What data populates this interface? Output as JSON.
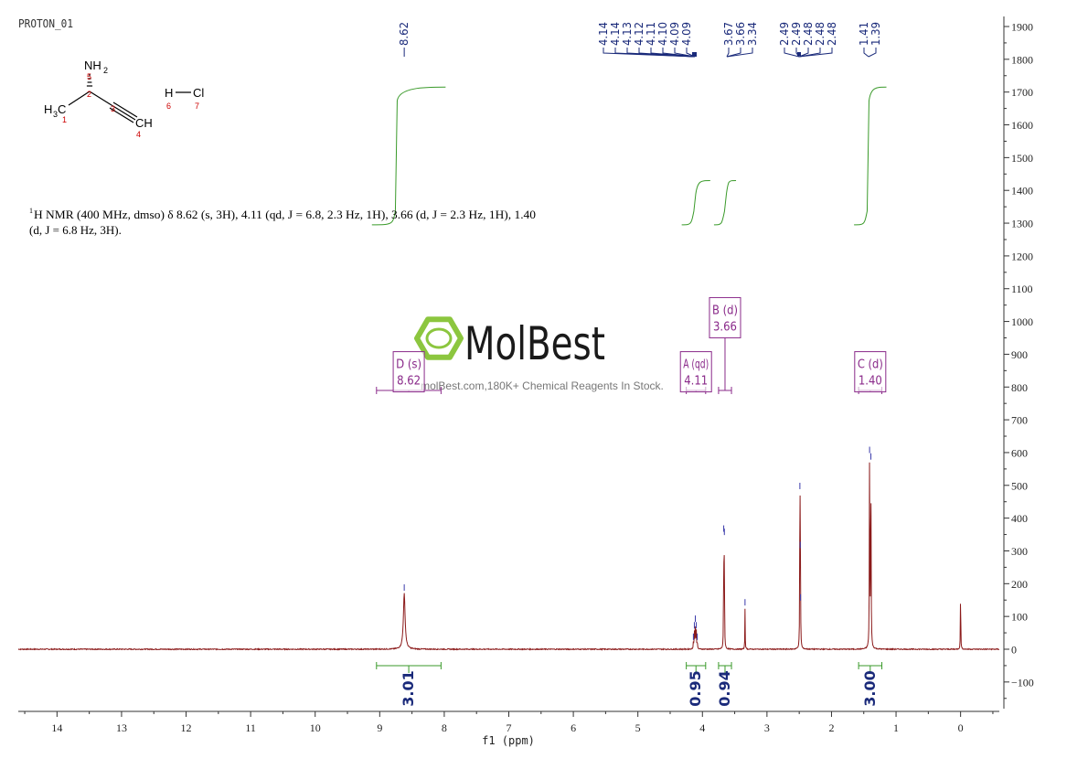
{
  "chart_data": {
    "type": "line",
    "title": "PROTON_01",
    "xlabel": "f1 (ppm)",
    "ylabel": "",
    "xlim": [
      14.6,
      -0.6
    ],
    "ylim": [
      -190,
      1925
    ],
    "x_ticks": [
      14,
      13,
      12,
      11,
      10,
      9,
      8,
      7,
      6,
      5,
      4,
      3,
      2,
      1,
      0
    ],
    "y_ticks": [
      1900,
      1800,
      1700,
      1600,
      1500,
      1400,
      1300,
      1200,
      1100,
      1000,
      900,
      800,
      700,
      600,
      500,
      400,
      300,
      200,
      100,
      0,
      -100
    ],
    "peaks": [
      {
        "ppm": 8.62,
        "height": 170,
        "width": 0.016
      },
      {
        "ppm": 4.14,
        "height": 20,
        "width": 0.004
      },
      {
        "ppm": 4.125,
        "height": 55,
        "width": 0.004
      },
      {
        "ppm": 4.11,
        "height": 75,
        "width": 0.004
      },
      {
        "ppm": 4.095,
        "height": 55,
        "width": 0.004
      },
      {
        "ppm": 4.08,
        "height": 20,
        "width": 0.004
      },
      {
        "ppm": 3.67,
        "height": 350,
        "width": 0.003
      },
      {
        "ppm": 3.66,
        "height": 340,
        "width": 0.003
      },
      {
        "ppm": 3.34,
        "height": 125,
        "width": 0.003
      },
      {
        "ppm": 2.49,
        "height": 480,
        "width": 0.003
      },
      {
        "ppm": 2.485,
        "height": 300,
        "width": 0.003
      },
      {
        "ppm": 2.48,
        "height": 140,
        "width": 0.003
      },
      {
        "ppm": 1.41,
        "height": 590,
        "width": 0.004
      },
      {
        "ppm": 1.39,
        "height": 570,
        "width": 0.004
      },
      {
        "ppm": 0.0,
        "height": 210,
        "width": 0.003
      }
    ],
    "peak_labels": [
      {
        "text": "8.62",
        "ppm": 8.62
      },
      {
        "text": "4.14",
        "ppm": 4.14
      },
      {
        "text": "4.14",
        "ppm": 4.14
      },
      {
        "text": "4.13",
        "ppm": 4.13
      },
      {
        "text": "4.12",
        "ppm": 4.12
      },
      {
        "text": "4.11",
        "ppm": 4.11
      },
      {
        "text": "4.10",
        "ppm": 4.1
      },
      {
        "text": "4.09",
        "ppm": 4.09
      },
      {
        "text": "4.09",
        "ppm": 4.09
      },
      {
        "text": "3.67",
        "ppm": 3.67
      },
      {
        "text": "3.66",
        "ppm": 3.66
      },
      {
        "text": "3.34",
        "ppm": 3.34
      },
      {
        "text": "2.49",
        "ppm": 2.49
      },
      {
        "text": "2.49",
        "ppm": 2.49
      },
      {
        "text": "2.48",
        "ppm": 2.48
      },
      {
        "text": "2.48",
        "ppm": 2.48
      },
      {
        "text": "2.48",
        "ppm": 2.48
      },
      {
        "text": "1.41",
        "ppm": 1.41
      },
      {
        "text": "1.39",
        "ppm": 1.39
      }
    ],
    "integrals": [
      {
        "from": 9.05,
        "to": 8.05,
        "value": "3.01",
        "rise": [
          1295,
          1715
        ]
      },
      {
        "from": 4.25,
        "to": 3.95,
        "value": "0.95",
        "rise": [
          1295,
          1430
        ]
      },
      {
        "from": 3.75,
        "to": 3.55,
        "value": "0.94",
        "rise": [
          1295,
          1430
        ]
      },
      {
        "from": 1.58,
        "to": 1.22,
        "value": "3.00",
        "rise": [
          1295,
          1715
        ]
      }
    ],
    "multiplets": [
      {
        "name": "D (s)",
        "shift": "8.62",
        "from": 9.05,
        "to": 8.05,
        "box_y": 880
      },
      {
        "name": "A (qd)",
        "shift": "4.11",
        "from": 4.25,
        "to": 3.95,
        "box_y": 880
      },
      {
        "name": "B (d)",
        "shift": "3.66",
        "from": 3.75,
        "to": 3.55,
        "box_y": 1045
      },
      {
        "name": "C (d)",
        "shift": "1.40",
        "from": 1.58,
        "to": 1.22,
        "box_y": 880
      }
    ],
    "colors": {
      "spectrum": "#8b1a1a",
      "integral": "#3a9a2a",
      "peak_label": "#1a2a7a",
      "multiplet": "#8a2a8a",
      "axis": "#333333",
      "watermark_green": "#8cc63f"
    }
  },
  "description": {
    "line1_prefix": "1",
    "line1": "H NMR (400 MHz, dmso) δ 8.62 (s, 3H), 4.11 (qd, J = 6.8, 2.3 Hz, 1H), 3.66 (d, J = 2.3 Hz, 1H), 1.40",
    "line2": "(d, J = 6.8 Hz, 3H)."
  },
  "molecule": {
    "nh2": "NH",
    "nh2_sub": "2",
    "h3c": "H",
    "h3c_sub": "3",
    "h3c_c": "C",
    "ch": "CH",
    "hcl_h": "H",
    "hcl_cl": "Cl",
    "atom_numbers": [
      "1",
      "2",
      "3",
      "4",
      "5",
      "6",
      "7"
    ]
  },
  "watermark": {
    "brand": "MolBest",
    "tagline": "molBest.com,180K+ Chemical Reagents In Stock."
  }
}
